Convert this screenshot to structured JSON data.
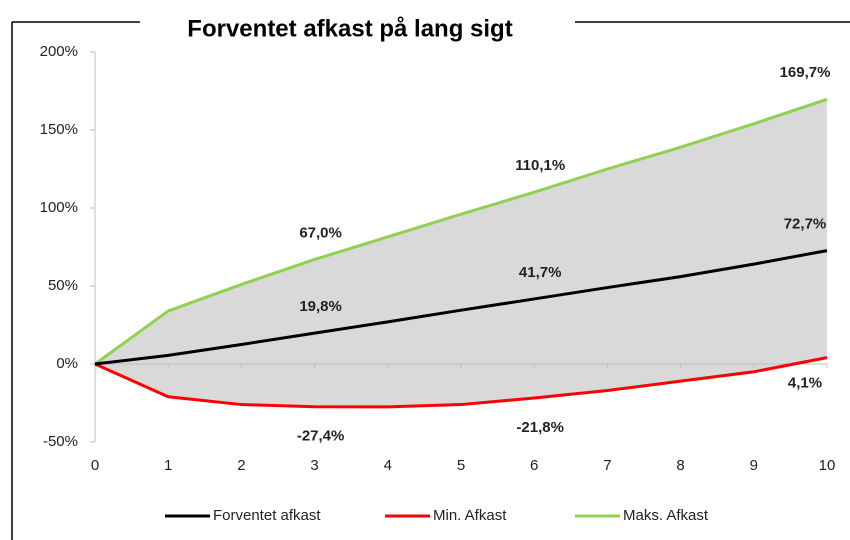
{
  "chart_data": {
    "type": "line",
    "title": "Forventet afkast på lang sigt",
    "x": [
      0,
      1,
      2,
      3,
      4,
      5,
      6,
      7,
      8,
      9,
      10
    ],
    "xlim": [
      0,
      10
    ],
    "xticks": [
      0,
      1,
      2,
      3,
      4,
      5,
      6,
      7,
      8,
      9,
      10
    ],
    "ylim": [
      -50,
      200
    ],
    "yticks": [
      {
        "value": -50,
        "label": "-50%"
      },
      {
        "value": 0,
        "label": "0%"
      },
      {
        "value": 50,
        "label": "50%"
      },
      {
        "value": 100,
        "label": "100%"
      },
      {
        "value": 150,
        "label": "150%"
      },
      {
        "value": 200,
        "label": "200%"
      }
    ],
    "band_color": "#d9d9d9",
    "series": [
      {
        "name": "Forventet afkast",
        "color": "#000000",
        "values": [
          0,
          5.5,
          12.5,
          19.8,
          27,
          34.5,
          41.7,
          49,
          56,
          64,
          72.7
        ],
        "value_labels": [
          null,
          null,
          null,
          "19,8%",
          null,
          null,
          "41,7%",
          null,
          null,
          null,
          "72,7%"
        ]
      },
      {
        "name": "Min. Afkast",
        "color": "#ff0000",
        "values": [
          0,
          -21,
          -26,
          -27.4,
          -27.5,
          -26,
          -21.8,
          -17,
          -11,
          -5,
          4.1
        ],
        "value_labels": [
          null,
          null,
          null,
          "-27,4%",
          null,
          null,
          "-21,8%",
          null,
          null,
          null,
          "4,1%"
        ]
      },
      {
        "name": "Maks. Afkast",
        "color": "#92d050",
        "values": [
          0,
          34,
          51,
          67.0,
          81.5,
          96,
          110.1,
          125,
          139,
          154,
          169.7
        ],
        "value_labels": [
          null,
          null,
          null,
          "67,0%",
          null,
          null,
          "110,1%",
          null,
          null,
          null,
          "169,7%"
        ]
      }
    ]
  }
}
